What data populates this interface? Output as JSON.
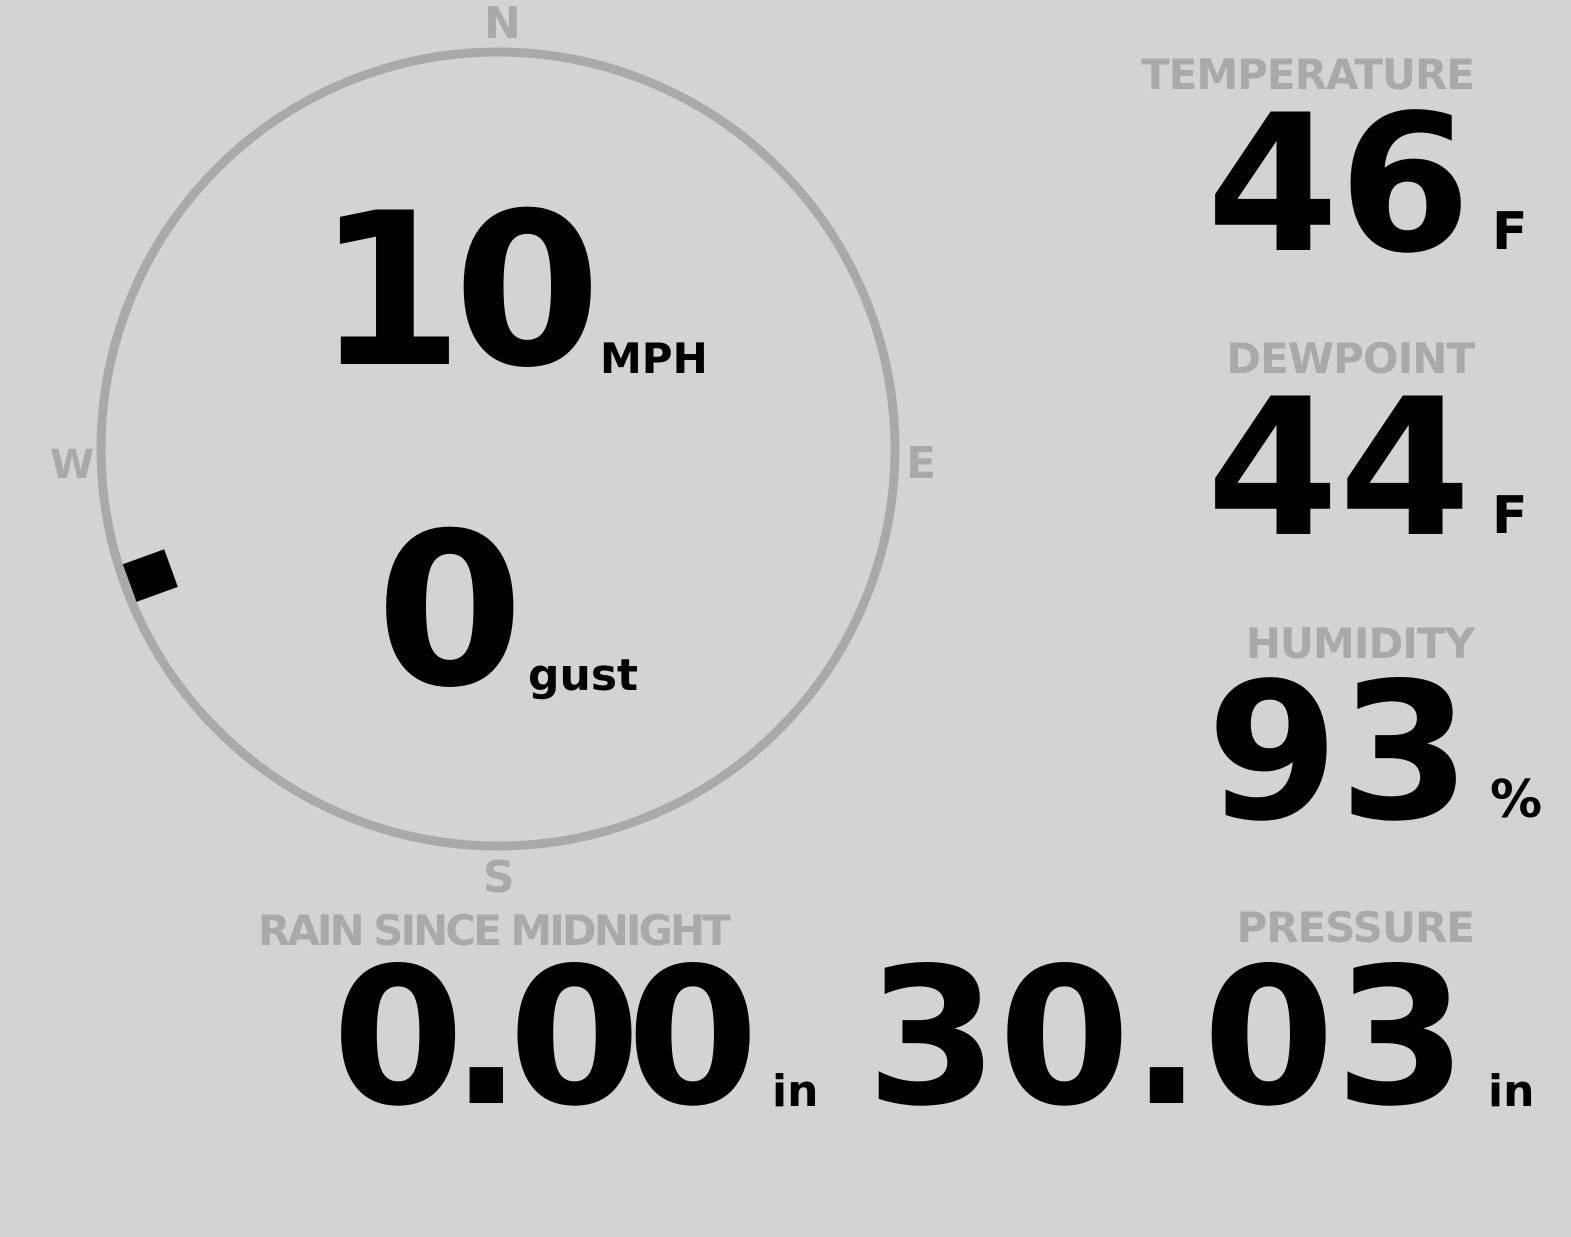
{
  "wind": {
    "speed": "10",
    "speed_unit": "MPH",
    "gust": "0",
    "gust_unit": "gust",
    "direction_degrees": 250,
    "compass": {
      "n": "N",
      "e": "E",
      "s": "S",
      "w": "W"
    }
  },
  "temperature": {
    "label": "TEMPERATURE",
    "value": "46",
    "unit": "F"
  },
  "dewpoint": {
    "label": "DEWPOINT",
    "value": "44",
    "unit": "F"
  },
  "humidity": {
    "label": "HUMIDITY",
    "value": "93",
    "unit": "%"
  },
  "rain": {
    "label": "RAIN SINCE MIDNIGHT",
    "value": "0.00",
    "unit": "in"
  },
  "pressure": {
    "label": "PRESSURE",
    "value": "30.03",
    "unit": "in"
  },
  "colors": {
    "background": "#d3d3d3",
    "label": "#a9a9a9",
    "value": "#000000"
  }
}
